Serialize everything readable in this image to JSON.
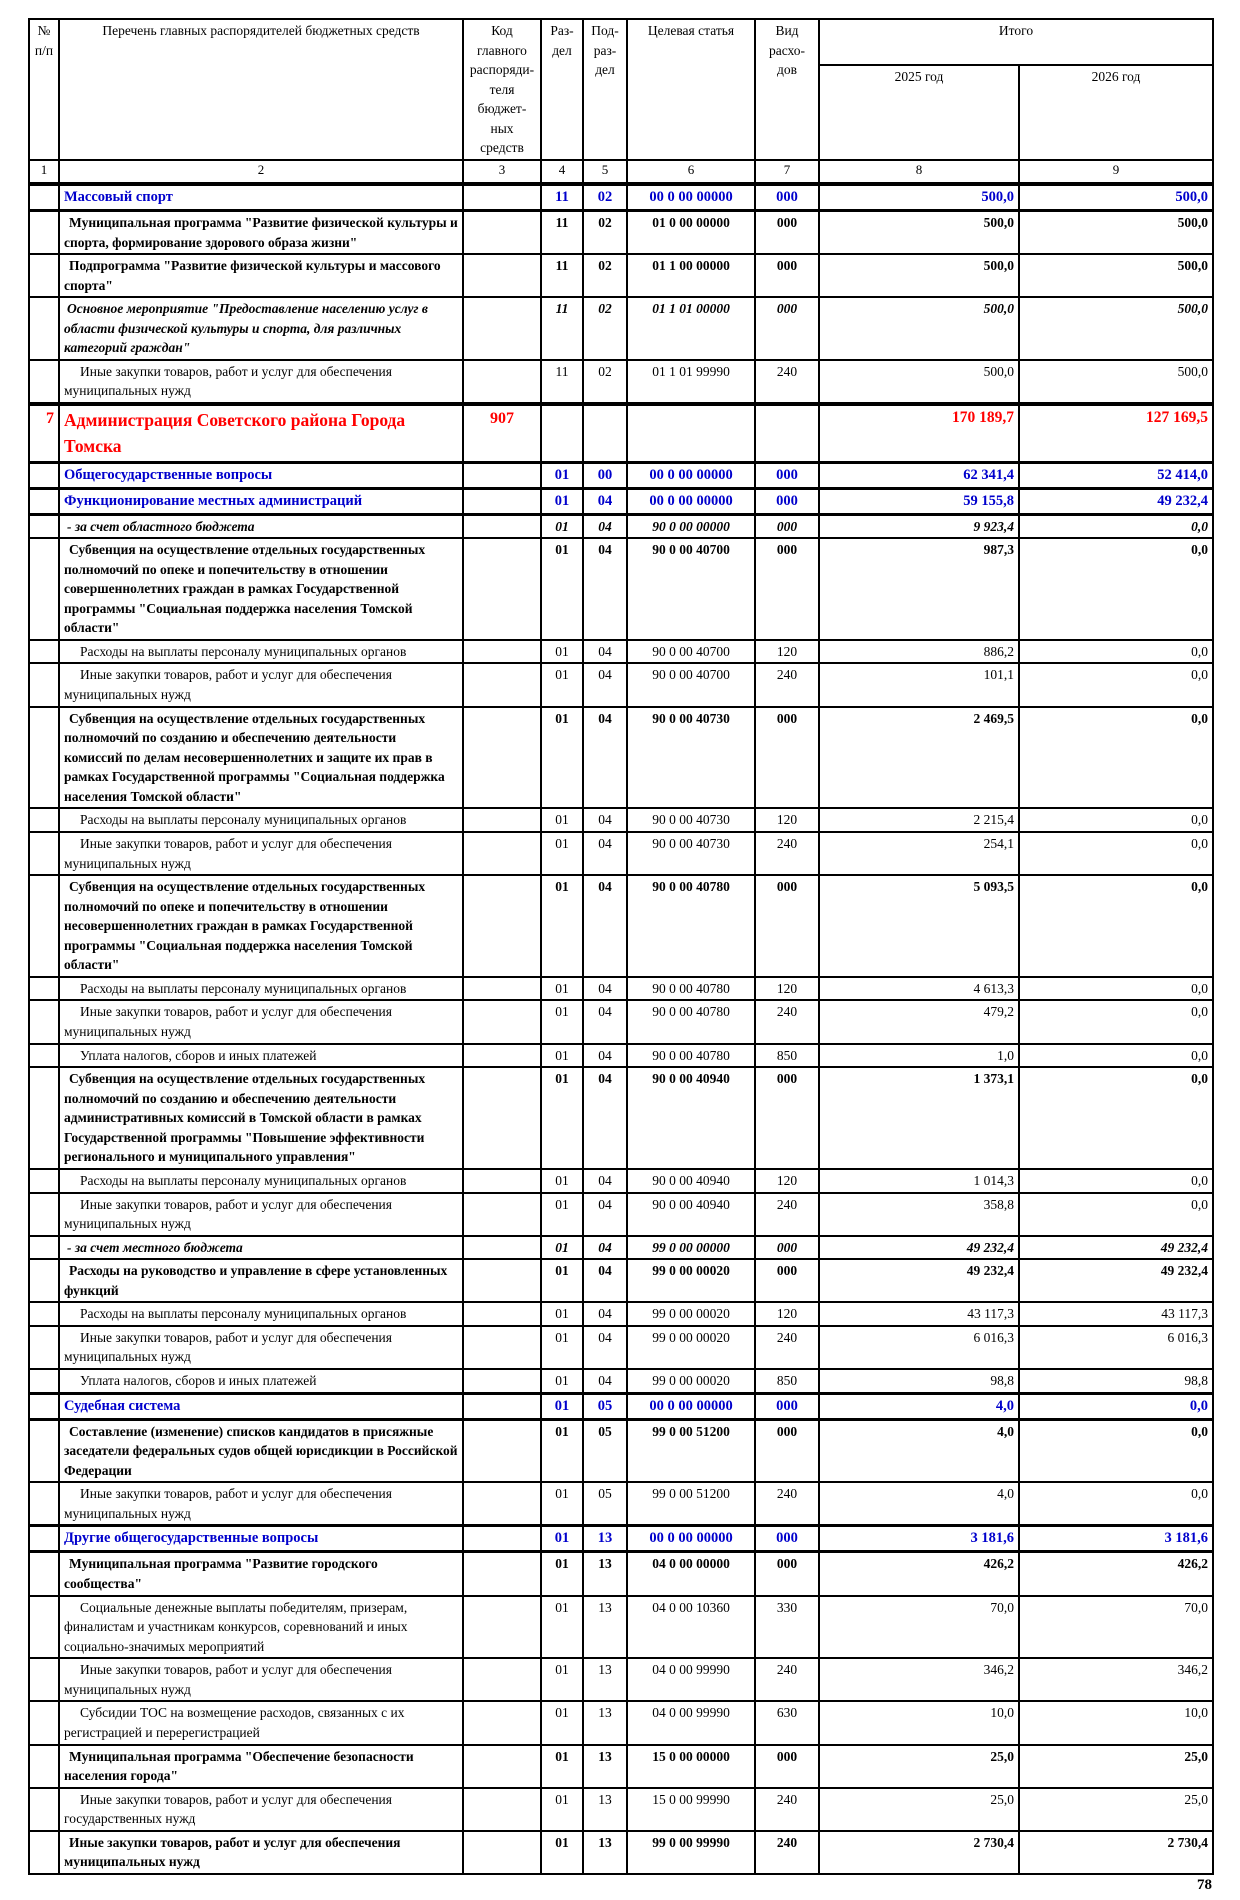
{
  "page": {
    "number": "78"
  },
  "colors": {
    "section_blue": "#0000CC",
    "grbs_red": "#FF0000",
    "grid_black": "#000000"
  },
  "table": {
    "header": {
      "col_no": "№ п/п",
      "col_list": "Перечень главных распорядителей бюджетных средств",
      "col_code": "Код главного распоряди-теля бюджет-ных средств",
      "col_razdel": "Раз-дел",
      "col_podrazdel": "Под-раз-дел",
      "col_target": "Целевая статья",
      "col_vid": "Вид расхо-дов",
      "col_itogo": "Итого",
      "col_2025": "2025 год",
      "col_2026": "2026 год",
      "numbering": [
        "1",
        "2",
        "3",
        "4",
        "5",
        "6",
        "7",
        "8",
        "9"
      ]
    },
    "rows": [
      {
        "style": "blue",
        "no": "",
        "name": "Массовый спорт",
        "code": "",
        "razdel": "11",
        "pod": "02",
        "target": "00 0 00 00000",
        "vid": "000",
        "y2025": "500,0",
        "y2026": "500,0"
      },
      {
        "style": "bold",
        "no": "",
        "name": "Муниципальная программа \"Развитие физической культуры и спорта, формирование здорового образа жизни\"",
        "code": "",
        "razdel": "11",
        "pod": "02",
        "target": "01 0 00 00000",
        "vid": "000",
        "y2025": "500,0",
        "y2026": "500,0"
      },
      {
        "style": "bold",
        "no": "",
        "name": "Подпрограмма \"Развитие физической культуры и массового спорта\"",
        "code": "",
        "razdel": "11",
        "pod": "02",
        "target": "01 1 00 00000",
        "vid": "000",
        "y2025": "500,0",
        "y2026": "500,0"
      },
      {
        "style": "bolditalic",
        "no": "",
        "name": "Основное мероприятие \"Предоставление населению услуг в области физической культуры и спорта, для различных категорий граждан\"",
        "code": "",
        "razdel": "11",
        "pod": "02",
        "target": "01 1 01 00000",
        "vid": "000",
        "y2025": "500,0",
        "y2026": "500,0"
      },
      {
        "style": "regular",
        "no": "",
        "name": "Иные закупки товаров, работ и услуг для обеспечения муниципальных нужд",
        "code": "",
        "razdel": "11",
        "pod": "02",
        "target": "01 1 01 99990",
        "vid": "240",
        "y2025": "500,0",
        "y2026": "500,0"
      },
      {
        "style": "red",
        "no": "7",
        "name": "Администрация Советского района Города Томска",
        "code": "907",
        "razdel": "",
        "pod": "",
        "target": "",
        "vid": "",
        "y2025": "170 189,7",
        "y2026": "127 169,5"
      },
      {
        "style": "blue",
        "no": "",
        "name": "Общегосударственные вопросы",
        "code": "",
        "razdel": "01",
        "pod": "00",
        "target": "00 0 00 00000",
        "vid": "000",
        "y2025": "62 341,4",
        "y2026": "52 414,0"
      },
      {
        "style": "blue",
        "no": "",
        "name": "Функционирование местных администраций",
        "code": "",
        "razdel": "01",
        "pod": "04",
        "target": "00 0 00 00000",
        "vid": "000",
        "y2025": "59 155,8",
        "y2026": "49 232,4"
      },
      {
        "style": "bolditalic",
        "no": "",
        "name": "- за счет областного бюджета",
        "code": "",
        "razdel": "01",
        "pod": "04",
        "target": "90 0 00 00000",
        "vid": "000",
        "y2025": "9 923,4",
        "y2026": "0,0"
      },
      {
        "style": "bold",
        "no": "",
        "name": "Субвенция на осуществление отдельных государственных полномочий по опеке и попечительству в отношении совершеннолетних граждан в рамках Государственной программы \"Социальная поддержка населения Томской области\"",
        "code": "",
        "razdel": "01",
        "pod": "04",
        "target": "90 0 00 40700",
        "vid": "000",
        "y2025": "987,3",
        "y2026": "0,0"
      },
      {
        "style": "regular",
        "no": "",
        "name": "Расходы на выплаты персоналу муниципальных органов",
        "code": "",
        "razdel": "01",
        "pod": "04",
        "target": "90 0 00 40700",
        "vid": "120",
        "y2025": "886,2",
        "y2026": "0,0"
      },
      {
        "style": "regular",
        "no": "",
        "name": "Иные закупки товаров, работ и услуг для обеспечения муниципальных нужд",
        "code": "",
        "razdel": "01",
        "pod": "04",
        "target": "90 0 00 40700",
        "vid": "240",
        "y2025": "101,1",
        "y2026": "0,0"
      },
      {
        "style": "bold",
        "no": "",
        "name": "Субвенция на осуществление отдельных государственных полномочий по созданию и обеспечению деятельности комиссий по делам несовершеннолетних и защите их прав в рамках Государственной программы \"Социальная поддержка населения Томской области\"",
        "code": "",
        "razdel": "01",
        "pod": "04",
        "target": "90 0 00 40730",
        "vid": "000",
        "y2025": "2 469,5",
        "y2026": "0,0"
      },
      {
        "style": "regular",
        "no": "",
        "name": "Расходы на выплаты персоналу муниципальных органов",
        "code": "",
        "razdel": "01",
        "pod": "04",
        "target": "90 0 00 40730",
        "vid": "120",
        "y2025": "2 215,4",
        "y2026": "0,0"
      },
      {
        "style": "regular",
        "no": "",
        "name": "Иные закупки товаров, работ и услуг для обеспечения муниципальных нужд",
        "code": "",
        "razdel": "01",
        "pod": "04",
        "target": "90 0 00 40730",
        "vid": "240",
        "y2025": "254,1",
        "y2026": "0,0"
      },
      {
        "style": "bold",
        "no": "",
        "name": "Субвенция на осуществление отдельных государственных полномочий по опеке и попечительству в отношении несовершеннолетних граждан в рамках Государственной программы \"Социальная поддержка населения Томской области\"",
        "code": "",
        "razdel": "01",
        "pod": "04",
        "target": "90 0 00 40780",
        "vid": "000",
        "y2025": "5 093,5",
        "y2026": "0,0"
      },
      {
        "style": "regular",
        "no": "",
        "name": "Расходы на выплаты персоналу муниципальных органов",
        "code": "",
        "razdel": "01",
        "pod": "04",
        "target": "90 0 00 40780",
        "vid": "120",
        "y2025": "4 613,3",
        "y2026": "0,0"
      },
      {
        "style": "regular",
        "no": "",
        "name": "Иные закупки товаров, работ и услуг для обеспечения муниципальных нужд",
        "code": "",
        "razdel": "01",
        "pod": "04",
        "target": "90 0 00 40780",
        "vid": "240",
        "y2025": "479,2",
        "y2026": "0,0"
      },
      {
        "style": "regular",
        "no": "",
        "name": "Уплата налогов, сборов и иных платежей",
        "code": "",
        "razdel": "01",
        "pod": "04",
        "target": "90 0 00 40780",
        "vid": "850",
        "y2025": "1,0",
        "y2026": "0,0"
      },
      {
        "style": "bold",
        "no": "",
        "name": "Субвенция на осуществление отдельных государственных полномочий по созданию и обеспечению деятельности административных комиссий в Томской области в рамках Государственной программы \"Повышение эффективности регионального и муниципального управления\"",
        "code": "",
        "razdel": "01",
        "pod": "04",
        "target": "90 0 00 40940",
        "vid": "000",
        "y2025": "1 373,1",
        "y2026": "0,0"
      },
      {
        "style": "regular",
        "no": "",
        "name": "Расходы на выплаты персоналу муниципальных органов",
        "code": "",
        "razdel": "01",
        "pod": "04",
        "target": "90 0 00 40940",
        "vid": "120",
        "y2025": "1 014,3",
        "y2026": "0,0"
      },
      {
        "style": "regular",
        "no": "",
        "name": "Иные закупки товаров, работ и услуг для обеспечения муниципальных нужд",
        "code": "",
        "razdel": "01",
        "pod": "04",
        "target": "90 0 00 40940",
        "vid": "240",
        "y2025": "358,8",
        "y2026": "0,0"
      },
      {
        "style": "bolditalic",
        "no": "",
        "name": "- за счет местного бюджета",
        "code": "",
        "razdel": "01",
        "pod": "04",
        "target": "99 0 00 00000",
        "vid": "000",
        "y2025": "49 232,4",
        "y2026": "49 232,4"
      },
      {
        "style": "bold",
        "no": "",
        "name": "Расходы на руководство и управление в сфере установленных функций",
        "code": "",
        "razdel": "01",
        "pod": "04",
        "target": "99 0 00 00020",
        "vid": "000",
        "y2025": "49 232,4",
        "y2026": "49 232,4"
      },
      {
        "style": "regular",
        "no": "",
        "name": "Расходы на выплаты персоналу муниципальных органов",
        "code": "",
        "razdel": "01",
        "pod": "04",
        "target": "99 0 00 00020",
        "vid": "120",
        "y2025": "43 117,3",
        "y2026": "43 117,3"
      },
      {
        "style": "regular",
        "no": "",
        "name": "Иные закупки товаров, работ и услуг для обеспечения муниципальных нужд",
        "code": "",
        "razdel": "01",
        "pod": "04",
        "target": "99 0 00 00020",
        "vid": "240",
        "y2025": "6 016,3",
        "y2026": "6 016,3"
      },
      {
        "style": "regular",
        "no": "",
        "name": "Уплата налогов, сборов и иных платежей",
        "code": "",
        "razdel": "01",
        "pod": "04",
        "target": "99 0 00 00020",
        "vid": "850",
        "y2025": "98,8",
        "y2026": "98,8"
      },
      {
        "style": "blue",
        "no": "",
        "name": "Судебная система",
        "code": "",
        "razdel": "01",
        "pod": "05",
        "target": "00 0 00 00000",
        "vid": "000",
        "y2025": "4,0",
        "y2026": "0,0"
      },
      {
        "style": "bold",
        "no": "",
        "name": "Составление (изменение) списков кандидатов в присяжные заседатели федеральных судов общей юрисдикции в Российской Федерации",
        "code": "",
        "razdel": "01",
        "pod": "05",
        "target": "99 0 00 51200",
        "vid": "000",
        "y2025": "4,0",
        "y2026": "0,0"
      },
      {
        "style": "regular",
        "no": "",
        "name": "Иные закупки товаров, работ и услуг для обеспечения муниципальных нужд",
        "code": "",
        "razdel": "01",
        "pod": "05",
        "target": "99 0 00 51200",
        "vid": "240",
        "y2025": "4,0",
        "y2026": "0,0"
      },
      {
        "style": "blue",
        "no": "",
        "name": "Другие общегосударственные вопросы",
        "code": "",
        "razdel": "01",
        "pod": "13",
        "target": "00 0 00 00000",
        "vid": "000",
        "y2025": "3 181,6",
        "y2026": "3 181,6"
      },
      {
        "style": "bold",
        "no": "",
        "name": "Муниципальная программа \"Развитие городского сообщества\"",
        "code": "",
        "razdel": "01",
        "pod": "13",
        "target": "04 0 00 00000",
        "vid": "000",
        "y2025": "426,2",
        "y2026": "426,2"
      },
      {
        "style": "regular",
        "no": "",
        "name": "Социальные денежные выплаты победителям, призерам, финалистам и участникам конкурсов, соревнований и иных социально-значимых мероприятий",
        "code": "",
        "razdel": "01",
        "pod": "13",
        "target": "04 0 00 10360",
        "vid": "330",
        "y2025": "70,0",
        "y2026": "70,0"
      },
      {
        "style": "regular",
        "no": "",
        "name": "Иные закупки товаров, работ и услуг для обеспечения муниципальных нужд",
        "code": "",
        "razdel": "01",
        "pod": "13",
        "target": "04 0 00 99990",
        "vid": "240",
        "y2025": "346,2",
        "y2026": "346,2"
      },
      {
        "style": "regular",
        "no": "",
        "name": "Субсидии ТОС на возмещение расходов, связанных с их регистрацией и перерегистрацией",
        "code": "",
        "razdel": "01",
        "pod": "13",
        "target": "04 0 00 99990",
        "vid": "630",
        "y2025": "10,0",
        "y2026": "10,0"
      },
      {
        "style": "bold",
        "no": "",
        "name": "Муниципальная программа \"Обеспечение безопасности населения города\"",
        "code": "",
        "razdel": "01",
        "pod": "13",
        "target": "15 0 00 00000",
        "vid": "000",
        "y2025": "25,0",
        "y2026": "25,0"
      },
      {
        "style": "regular",
        "no": "",
        "name": "Иные закупки товаров, работ и услуг для обеспечения государственных нужд",
        "code": "",
        "razdel": "01",
        "pod": "13",
        "target": "15 0 00 99990",
        "vid": "240",
        "y2025": "25,0",
        "y2026": "25,0"
      },
      {
        "style": "bold",
        "no": "",
        "name": "Иные закупки товаров, работ и услуг для обеспечения муниципальных нужд",
        "code": "",
        "razdel": "01",
        "pod": "13",
        "target": "99 0 00 99990",
        "vid": "240",
        "y2025": "2 730,4",
        "y2026": "2 730,4"
      }
    ]
  }
}
